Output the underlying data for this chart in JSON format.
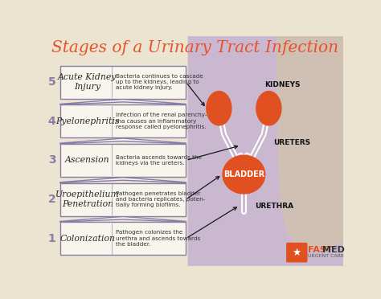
{
  "title": "Stages of a Urinary Tract Infection",
  "title_color": "#E8522A",
  "bg_left": "#EAE4D0",
  "bg_right": "#C9B8D0",
  "box_face": "#F8F5EC",
  "border_color": "#8B7BA8",
  "number_color": "#8B7BA8",
  "stage_name_color": "#2a2a2a",
  "desc_color": "#333333",
  "organ_color": "#E05020",
  "organ_label_color": "#111111",
  "arrow_color": "#1a1a1a",
  "stages": [
    {
      "num": "5",
      "name": "Acute Kidney\nInjury",
      "desc": "Bacteria continues to cascade\nup to the kidneys, leading to\nacute kidney injury.",
      "arrow_target": [
        258,
        257
      ]
    },
    {
      "num": "4",
      "name": "Pyelonephritis",
      "desc": "Infection of the renal parenchy-\nma causes an inflammatory\nresponse called pyelonephritis.",
      "arrow_target": null
    },
    {
      "num": "3",
      "name": "Ascension",
      "desc": "Bacteria ascends towards the\nkidneys via the ureters.",
      "arrow_target": [
        310,
        195
      ]
    },
    {
      "num": "2",
      "name": "Uroepithelium\nPenetration",
      "desc": "Pathogen penetrates bladder\nand bacteria replicates, poten-\ntially forming biofilms.",
      "arrow_target": [
        280,
        148
      ]
    },
    {
      "num": "1",
      "name": "Colonization",
      "desc": "Pathogen colonizes the\nurethra and ascends towards\nthe bladder.",
      "arrow_target": [
        308,
        98
      ]
    }
  ]
}
